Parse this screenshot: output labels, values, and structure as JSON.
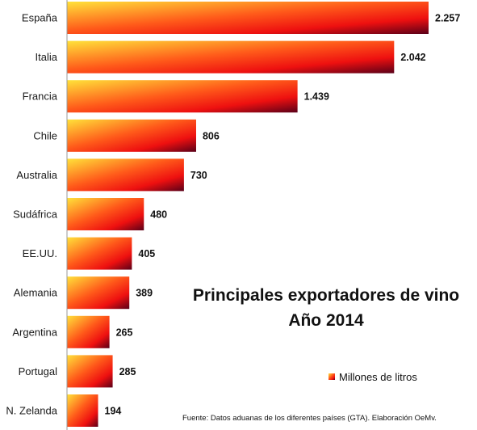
{
  "chart_data": {
    "type": "bar",
    "orientation": "horizontal",
    "title": [
      "Principales exportadores de vino",
      "Año 2014"
    ],
    "categories": [
      "España",
      "Italia",
      "Francia",
      "Chile",
      "Australia",
      "Sudáfrica",
      "EE.UU.",
      "Alemania",
      "Argentina",
      "Portugal",
      "N. Zelanda"
    ],
    "values": [
      2257,
      2042,
      1439,
      806,
      730,
      480,
      405,
      389,
      265,
      285,
      194
    ],
    "value_labels": [
      "2.257",
      "2.042",
      "1.439",
      "806",
      "730",
      "480",
      "405",
      "389",
      "265",
      "285",
      "194"
    ],
    "series": [
      {
        "name": "Millones de litros",
        "values": [
          2257,
          2042,
          1439,
          806,
          730,
          480,
          405,
          389,
          265,
          285,
          194
        ]
      }
    ],
    "xlim": [
      0,
      2400
    ],
    "grid": false,
    "legend": "bottom-right",
    "source": "Fuente: Datos aduanas de los diferentes países (GTA). Elaboración OeMv.",
    "colors": {
      "bar_light": "#ffe23a",
      "bar_mid": "#ff2a1a",
      "bar_dark": "#5a0018",
      "axis": "#999999"
    }
  }
}
